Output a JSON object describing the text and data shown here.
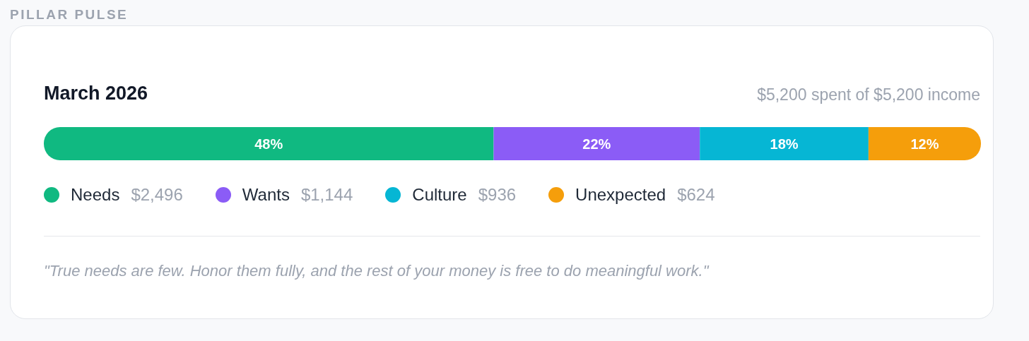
{
  "chart_data": {
    "type": "bar",
    "orientation": "horizontal",
    "stacked": true,
    "title": "March 2026",
    "subtitle": "$5,200 spent of $5,200 income",
    "categories": [
      null
    ],
    "series": [
      {
        "name": "Needs",
        "color": "#10b981",
        "values": [
          48
        ],
        "value_labels": [
          "48%"
        ]
      },
      {
        "name": "Wants",
        "color": "#8b5cf6",
        "values": [
          22
        ],
        "value_labels": [
          "22%"
        ]
      },
      {
        "name": "Culture",
        "color": "#06b6d4",
        "values": [
          18
        ],
        "value_labels": [
          "18%"
        ]
      },
      {
        "name": "Unexpected",
        "color": "#f59e0b",
        "values": [
          12
        ],
        "value_labels": [
          "12%"
        ]
      }
    ],
    "legend": "bottom",
    "annotations": [
      "PILLAR PULSE",
      "$2,496",
      "$1,144",
      "$936",
      "$624",
      "\"True needs are few. Honor them fully, and the rest of your money is free to do meaningful work.\""
    ]
  }
}
